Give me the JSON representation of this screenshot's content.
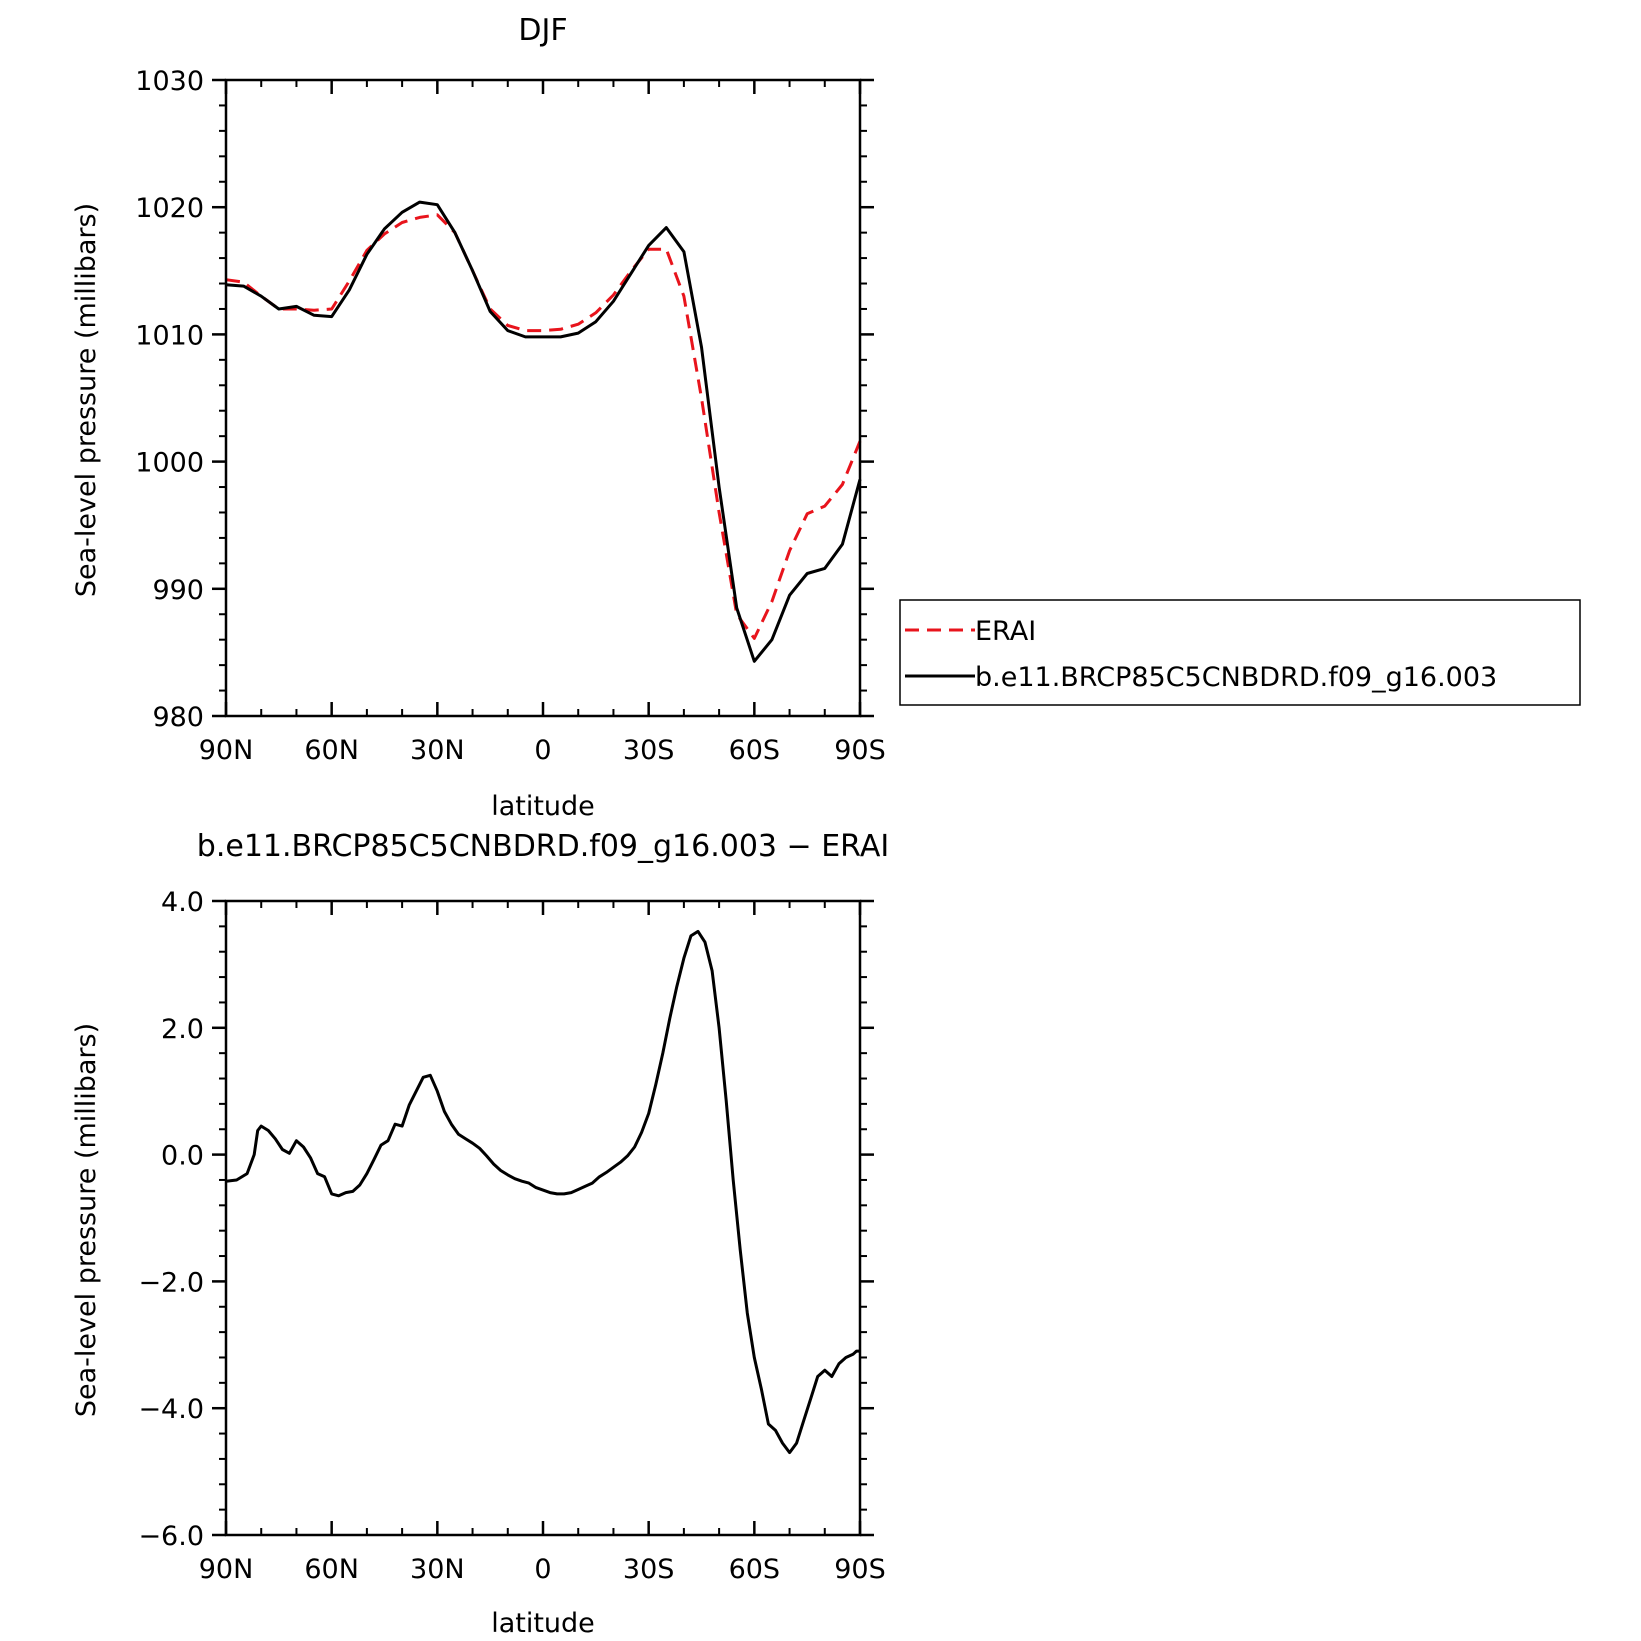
{
  "chart_data": [
    {
      "type": "line",
      "title": "DJF",
      "xlabel": "latitude",
      "ylabel": "Sea-level pressure (millibars)",
      "xlim": [
        90,
        -90
      ],
      "ylim": [
        980,
        1030
      ],
      "xticks": [
        90,
        60,
        30,
        0,
        -30,
        -60,
        -90
      ],
      "xtick_labels": [
        "90N",
        "60N",
        "30N",
        "0",
        "30S",
        "60S",
        "90S"
      ],
      "yticks": [
        980,
        990,
        1000,
        1010,
        1020,
        1030
      ],
      "ytick_labels": [
        "980",
        "990",
        "1000",
        "1010",
        "1020",
        "1030"
      ],
      "legend": {
        "placement": "right",
        "entries": [
          {
            "label": "ERAI",
            "color": "#e8141c",
            "style": "dashed"
          },
          {
            "label": "b.e11.BRCP85C5CNBDRD.f09_g16.003",
            "color": "#000000",
            "style": "solid"
          }
        ]
      },
      "series": [
        {
          "name": "ERAI",
          "color": "#e8141c",
          "style": "dashed",
          "x": [
            90,
            85,
            80,
            75,
            70,
            65,
            60,
            55,
            50,
            45,
            40,
            35,
            30,
            25,
            20,
            15,
            10,
            5,
            0,
            -5,
            -10,
            -15,
            -20,
            -25,
            -30,
            -35,
            -40,
            -45,
            -50,
            -55,
            -60,
            -65,
            -70,
            -75,
            -80,
            -85,
            -90
          ],
          "y": [
            1014.3,
            1014.1,
            1013.0,
            1012.0,
            1012.0,
            1011.9,
            1012.0,
            1014.2,
            1016.6,
            1017.9,
            1018.8,
            1019.2,
            1019.4,
            1018.0,
            1015.0,
            1012.0,
            1010.7,
            1010.3,
            1010.3,
            1010.4,
            1010.8,
            1011.7,
            1013.1,
            1015.0,
            1016.7,
            1016.7,
            1013.0,
            1005.0,
            996.0,
            988.0,
            986.1,
            989.0,
            993.0,
            995.9,
            996.5,
            998.2,
            1001.6
          ]
        },
        {
          "name": "b.e11.BRCP85C5CNBDRD.f09_g16.003",
          "color": "#000000",
          "style": "solid",
          "x": [
            90,
            85,
            80,
            75,
            70,
            65,
            60,
            55,
            50,
            45,
            40,
            35,
            30,
            25,
            20,
            15,
            10,
            5,
            0,
            -5,
            -10,
            -15,
            -20,
            -25,
            -30,
            -35,
            -40,
            -45,
            -50,
            -55,
            -60,
            -65,
            -70,
            -75,
            -80,
            -85,
            -90
          ],
          "y": [
            1013.9,
            1013.8,
            1013.0,
            1012.0,
            1012.2,
            1011.5,
            1011.4,
            1013.5,
            1016.3,
            1018.3,
            1019.6,
            1020.4,
            1020.2,
            1018.0,
            1015.0,
            1011.8,
            1010.3,
            1009.8,
            1009.8,
            1009.8,
            1010.1,
            1011.0,
            1012.6,
            1014.8,
            1017.0,
            1018.4,
            1016.5,
            1009.0,
            998.0,
            988.5,
            984.3,
            986.0,
            989.5,
            991.2,
            991.6,
            993.5,
            998.6
          ]
        }
      ]
    },
    {
      "type": "line",
      "title": "b.e11.BRCP85C5CNBDRD.f09_g16.003 − ERAI",
      "xlabel": "latitude",
      "ylabel": "Sea-level pressure (millibars)",
      "xlim": [
        90,
        -90
      ],
      "ylim": [
        -6,
        4
      ],
      "xticks": [
        90,
        60,
        30,
        0,
        -30,
        -60,
        -90
      ],
      "xtick_labels": [
        "90N",
        "60N",
        "30N",
        "0",
        "30S",
        "60S",
        "90S"
      ],
      "yticks": [
        -6,
        -4,
        -2,
        0,
        2,
        4
      ],
      "ytick_labels": [
        "−6.0",
        "−4.0",
        "−2.0",
        "0.0",
        "2.0",
        "4.0"
      ],
      "series": [
        {
          "color": "#000000",
          "style": "solid",
          "x": [
            90,
            87,
            84,
            82,
            81,
            80,
            78,
            76,
            74,
            72,
            70,
            68,
            66,
            64,
            62,
            60,
            58,
            56,
            54,
            52,
            50,
            48,
            46,
            44,
            42,
            40,
            38,
            36,
            34,
            32,
            30,
            28,
            26,
            24,
            22,
            20,
            18,
            16,
            14,
            12,
            10,
            8,
            6,
            4,
            2,
            0,
            -2,
            -4,
            -6,
            -8,
            -10,
            -12,
            -14,
            -16,
            -18,
            -20,
            -22,
            -24,
            -26,
            -28,
            -30,
            -32,
            -34,
            -36,
            -38,
            -40,
            -42,
            -44,
            -46,
            -48,
            -50,
            -52,
            -54,
            -56,
            -58,
            -60,
            -62,
            -64,
            -66,
            -68,
            -70,
            -72,
            -74,
            -76,
            -78,
            -80,
            -82,
            -84,
            -86,
            -88,
            -89,
            -90
          ],
          "y": [
            -0.42,
            -0.4,
            -0.3,
            0.0,
            0.38,
            0.45,
            0.38,
            0.25,
            0.08,
            0.02,
            0.22,
            0.12,
            -0.05,
            -0.3,
            -0.35,
            -0.62,
            -0.65,
            -0.6,
            -0.58,
            -0.48,
            -0.3,
            -0.08,
            0.15,
            0.22,
            0.48,
            0.45,
            0.78,
            1.0,
            1.22,
            1.25,
            1.0,
            0.68,
            0.48,
            0.32,
            0.25,
            0.18,
            0.1,
            -0.02,
            -0.15,
            -0.25,
            -0.32,
            -0.38,
            -0.42,
            -0.45,
            -0.52,
            -0.56,
            -0.6,
            -0.62,
            -0.62,
            -0.6,
            -0.55,
            -0.5,
            -0.45,
            -0.35,
            -0.28,
            -0.2,
            -0.12,
            -0.02,
            0.12,
            0.35,
            0.65,
            1.1,
            1.6,
            2.15,
            2.65,
            3.1,
            3.45,
            3.52,
            3.35,
            2.9,
            2.0,
            0.85,
            -0.4,
            -1.5,
            -2.5,
            -3.2,
            -3.7,
            -4.25,
            -4.35,
            -4.55,
            -4.7,
            -4.55,
            -4.2,
            -3.85,
            -3.5,
            -3.4,
            -3.5,
            -3.3,
            -3.2,
            -3.15,
            -3.1,
            -3.1
          ]
        }
      ]
    }
  ]
}
